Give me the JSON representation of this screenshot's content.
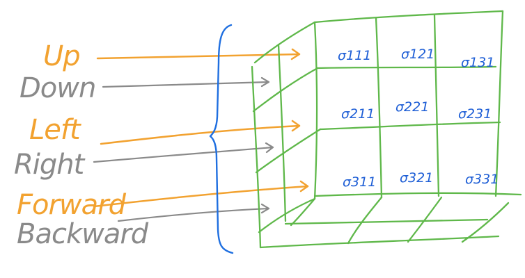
{
  "colors": {
    "orange": "#f2a230",
    "gray": "#8a8a8a",
    "green": "#5fb84a",
    "blue": "#1f6fe0",
    "ink_blue": "#1f5fd6"
  },
  "labels": [
    {
      "key": "up",
      "text": "Up",
      "color": "orange"
    },
    {
      "key": "down",
      "text": "Down",
      "color": "gray"
    },
    {
      "key": "left",
      "text": "Left",
      "color": "orange"
    },
    {
      "key": "right",
      "text": "Right",
      "color": "gray"
    },
    {
      "key": "forward",
      "text": "Forward",
      "color": "orange"
    },
    {
      "key": "backward",
      "text": "Backward",
      "color": "gray"
    }
  ],
  "grid_cells": [
    [
      "σ111",
      "σ121",
      "σ131"
    ],
    [
      "σ211",
      "σ221",
      "σ231"
    ],
    [
      "σ311",
      "σ321",
      "σ331"
    ]
  ]
}
